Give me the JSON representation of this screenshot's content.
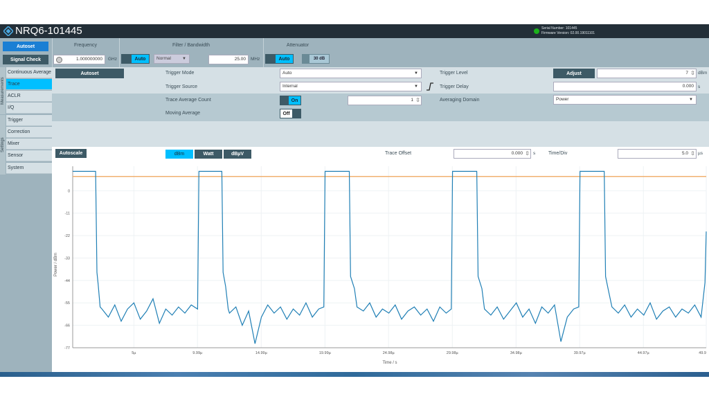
{
  "header": {
    "title": "NRQ6-101445",
    "serial": "Serial Number: 101445",
    "firmware": "Firmware Version: 02.00.19011101",
    "status_color": "#1bb21b"
  },
  "top": {
    "autoset": "Autoset",
    "signal_check": "Signal Check",
    "frequency": {
      "label": "Frequency",
      "value": "1.000000000",
      "unit": "GHz"
    },
    "filter": {
      "label": "Filter / Bandwidth",
      "auto": "Auto",
      "mode": "Normal",
      "bandwidth": "25.00",
      "unit": "MHz"
    },
    "attenuator": {
      "label": "Attenuator",
      "auto": "Auto",
      "value": "30 dB"
    }
  },
  "sidebar": {
    "group_measurements": "Measurements",
    "group_settings": "Settings",
    "items": [
      {
        "label": "Continuous Average"
      },
      {
        "label": "Trace",
        "active": true
      },
      {
        "label": "ACLR"
      },
      {
        "label": "I/Q"
      },
      {
        "label": "Trigger"
      },
      {
        "label": "Correction"
      },
      {
        "label": "Mixer"
      },
      {
        "label": "Sensor"
      },
      {
        "label": "System"
      }
    ]
  },
  "settings": {
    "autoset": "Autoset",
    "trigger_mode": {
      "label": "Trigger Mode",
      "value": "Auto"
    },
    "trigger_source": {
      "label": "Trigger Source",
      "value": "Internal"
    },
    "trace_avg": {
      "label": "Trace Average Count",
      "toggle": "On",
      "value": "1"
    },
    "moving_avg": {
      "label": "Moving Average",
      "toggle": "Off"
    },
    "trigger_level": {
      "label": "Trigger Level",
      "adjust": "Adjust",
      "value": "7",
      "unit": "dBm"
    },
    "trigger_delay": {
      "label": "Trigger Delay",
      "value": "0.000",
      "unit": "s"
    },
    "avg_domain": {
      "label": "Averaging Domain",
      "value": "Power"
    }
  },
  "chart_toolbar": {
    "autoscale": "Autoscale",
    "units": [
      "dBm",
      "Watt",
      "dBµV"
    ],
    "selected_unit": "dBm",
    "trace_offset": {
      "label": "Trace Offset",
      "value": "0.000",
      "unit": "s"
    },
    "time_div": {
      "label": "Time/Div",
      "value": "5.0",
      "unit": "µs"
    }
  },
  "chart_data": {
    "type": "line",
    "xlabel": "Time / s",
    "ylabel": "Power / dBm",
    "xlim": [
      0.2,
      49.9
    ],
    "ylim": [
      -77,
      12
    ],
    "xticks": [
      {
        "v": 5,
        "label": "5µ"
      },
      {
        "v": 9.99,
        "label": "9.99µ"
      },
      {
        "v": 14.99,
        "label": "14.99µ"
      },
      {
        "v": 19.99,
        "label": "19.99µ"
      },
      {
        "v": 24.98,
        "label": "24.98µ"
      },
      {
        "v": 29.98,
        "label": "29.98µ"
      },
      {
        "v": 34.98,
        "label": "34.98µ"
      },
      {
        "v": 39.97,
        "label": "39.97µ"
      },
      {
        "v": 44.97,
        "label": "44.97µ"
      },
      {
        "v": 49.9,
        "label": "49.9"
      }
    ],
    "yticks": [
      0,
      -11,
      -22,
      -33,
      -44,
      -55,
      -66,
      -77
    ],
    "grid": true,
    "trigger_level_line": {
      "value": 7,
      "color": "#f0b070"
    },
    "trace_color": "#1f7fb5",
    "trace": [
      [
        0.2,
        9.5
      ],
      [
        2.0,
        9.5
      ],
      [
        2.1,
        -40
      ],
      [
        2.2,
        -46
      ],
      [
        2.35,
        -57
      ],
      [
        2.5,
        -58
      ],
      [
        3,
        -62
      ],
      [
        3.5,
        -56
      ],
      [
        4,
        -64
      ],
      [
        4.5,
        -58
      ],
      [
        5,
        -55
      ],
      [
        5.5,
        -63
      ],
      [
        6,
        -59
      ],
      [
        6.5,
        -53
      ],
      [
        7,
        -65
      ],
      [
        7.5,
        -58
      ],
      [
        8,
        -61
      ],
      [
        8.5,
        -57
      ],
      [
        9,
        -60
      ],
      [
        9.5,
        -56
      ],
      [
        10.0,
        -58
      ],
      [
        10.1,
        9.5
      ],
      [
        11.9,
        9.5
      ],
      [
        12.0,
        -40
      ],
      [
        12.2,
        -47
      ],
      [
        12.4,
        -58
      ],
      [
        12.5,
        -60
      ],
      [
        13,
        -57
      ],
      [
        13.5,
        -66
      ],
      [
        14,
        -59
      ],
      [
        14.5,
        -75
      ],
      [
        15,
        -62
      ],
      [
        15.5,
        -56
      ],
      [
        16,
        -60
      ],
      [
        16.5,
        -57
      ],
      [
        17,
        -63
      ],
      [
        17.5,
        -58
      ],
      [
        18,
        -61
      ],
      [
        18.5,
        -55
      ],
      [
        19,
        -62
      ],
      [
        19.5,
        -58
      ],
      [
        19.9,
        -57
      ],
      [
        20.0,
        9.5
      ],
      [
        21.9,
        9.5
      ],
      [
        22.0,
        -42
      ],
      [
        22.3,
        -48
      ],
      [
        22.5,
        -57
      ],
      [
        23,
        -59
      ],
      [
        23.5,
        -55
      ],
      [
        24,
        -62
      ],
      [
        24.5,
        -58
      ],
      [
        25,
        -60
      ],
      [
        25.5,
        -56
      ],
      [
        26,
        -63
      ],
      [
        26.5,
        -59
      ],
      [
        27,
        -57
      ],
      [
        27.5,
        -61
      ],
      [
        28,
        -58
      ],
      [
        28.5,
        -64
      ],
      [
        29,
        -57
      ],
      [
        29.5,
        -60
      ],
      [
        29.9,
        -58
      ],
      [
        30.0,
        9.5
      ],
      [
        31.9,
        9.5
      ],
      [
        32.0,
        -42
      ],
      [
        32.3,
        -48
      ],
      [
        32.5,
        -58
      ],
      [
        33,
        -61
      ],
      [
        33.5,
        -57
      ],
      [
        34,
        -63
      ],
      [
        34.5,
        -59
      ],
      [
        35,
        -55
      ],
      [
        35.5,
        -62
      ],
      [
        36,
        -58
      ],
      [
        36.5,
        -65
      ],
      [
        37,
        -57
      ],
      [
        37.5,
        -60
      ],
      [
        38,
        -56
      ],
      [
        38.5,
        -74
      ],
      [
        39,
        -62
      ],
      [
        39.5,
        -58
      ],
      [
        39.9,
        -57
      ],
      [
        40.0,
        9.5
      ],
      [
        41.9,
        9.5
      ],
      [
        42.0,
        -42
      ],
      [
        42.2,
        -48
      ],
      [
        42.5,
        -57
      ],
      [
        43,
        -60
      ],
      [
        43.5,
        -56
      ],
      [
        44,
        -62
      ],
      [
        44.5,
        -58
      ],
      [
        45,
        -61
      ],
      [
        45.5,
        -55
      ],
      [
        46,
        -63
      ],
      [
        46.5,
        -59
      ],
      [
        47,
        -57
      ],
      [
        47.5,
        -62
      ],
      [
        48,
        -58
      ],
      [
        48.5,
        -60
      ],
      [
        49,
        -56
      ],
      [
        49.5,
        -62
      ],
      [
        49.8,
        -45
      ],
      [
        49.9,
        -20
      ]
    ]
  }
}
